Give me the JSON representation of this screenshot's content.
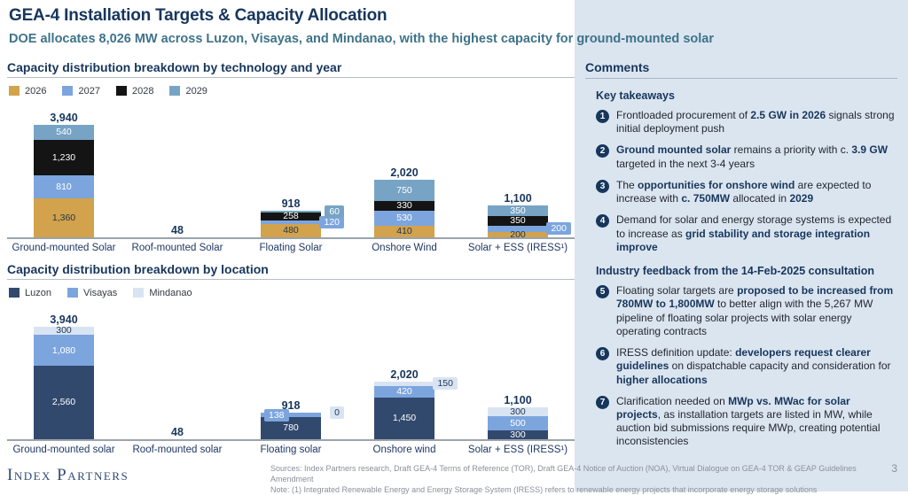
{
  "header": {
    "title": "GEA-4 Installation Targets & Capacity Allocation",
    "subtitle": "DOE allocates 8,026 MW across Luzon, Visayas, and Mindanao, with the highest capacity for ground-mounted solar"
  },
  "chart_data": [
    {
      "type": "bar",
      "stacked": true,
      "title": "Capacity distribution breakdown by technology and year",
      "unit": "MW",
      "ylim": [
        0,
        4200
      ],
      "grid": false,
      "legend_position": "top",
      "legend": [
        {
          "name": "2026",
          "color": "#D2A24C",
          "text": "#1F3550"
        },
        {
          "name": "2027",
          "color": "#7CA5DE",
          "text": "#FFFFFF"
        },
        {
          "name": "2028",
          "color": "#141414",
          "text": "#FFFFFF"
        },
        {
          "name": "2029",
          "color": "#77A4C5",
          "text": "#FFFFFF"
        }
      ],
      "categories": [
        "Ground-mounted Solar",
        "Roof-mounted Solar",
        "Floating Solar",
        "Onshore Wind",
        "Solar + ESS (IRESS¹)"
      ],
      "bars": [
        {
          "label": "Ground-mounted Solar",
          "total": 3940,
          "total_label": "3,940",
          "segments": [
            {
              "series": "2026",
              "v": 1360,
              "label": "1,360",
              "pos": "in"
            },
            {
              "series": "2027",
              "v": 810,
              "label": "810",
              "pos": "in"
            },
            {
              "series": "2028",
              "v": 1230,
              "label": "1,230",
              "pos": "in"
            },
            {
              "series": "2029",
              "v": 540,
              "label": "540",
              "pos": "in"
            }
          ]
        },
        {
          "label": "Roof-mounted Solar",
          "total": 48,
          "total_label": "48",
          "segments": []
        },
        {
          "label": "Floating Solar",
          "total": 918,
          "total_label": "918",
          "segments": [
            {
              "series": "2026",
              "v": 480,
              "label": "480",
              "pos": "in"
            },
            {
              "series": "2027",
              "v": 120,
              "label": "120",
              "pos": "right"
            },
            {
              "series": "2028",
              "v": 258,
              "label": "258",
              "pos": "in"
            },
            {
              "series": "2029",
              "v": 60,
              "label": "60",
              "pos": "right"
            }
          ]
        },
        {
          "label": "Onshore Wind",
          "total": 2020,
          "total_label": "2,020",
          "segments": [
            {
              "series": "2026",
              "v": 410,
              "label": "410",
              "pos": "in"
            },
            {
              "series": "2027",
              "v": 530,
              "label": "530",
              "pos": "in"
            },
            {
              "series": "2028",
              "v": 330,
              "label": "330",
              "pos": "in"
            },
            {
              "series": "2029",
              "v": 750,
              "label": "750",
              "pos": "in"
            }
          ]
        },
        {
          "label": "Solar + ESS (IRESS¹)",
          "total": 1100,
          "total_label": "1,100",
          "segments": [
            {
              "series": "2026",
              "v": 200,
              "label": "200",
              "pos": "in"
            },
            {
              "series": "2027",
              "v": 200,
              "label": "200",
              "pos": "right"
            },
            {
              "series": "2028",
              "v": 350,
              "label": "350",
              "pos": "in"
            },
            {
              "series": "2029",
              "v": 350,
              "label": "350",
              "pos": "in"
            }
          ]
        }
      ]
    },
    {
      "type": "bar",
      "stacked": true,
      "title": "Capacity distribution breakdown by location",
      "unit": "MW",
      "ylim": [
        0,
        4200
      ],
      "grid": false,
      "legend_position": "top",
      "legend": [
        {
          "name": "Luzon",
          "color": "#32496E",
          "text": "#FFFFFF"
        },
        {
          "name": "Visayas",
          "color": "#7CA5DE",
          "text": "#FFFFFF"
        },
        {
          "name": "Mindanao",
          "color": "#D9E4F3",
          "text": "#1F3550"
        }
      ],
      "categories": [
        "Ground-mounted solar",
        "Roof-mounted solar",
        "Floating solar",
        "Onshore wind",
        "Solar + ESS (IRESS¹)"
      ],
      "bars": [
        {
          "label": "Ground-mounted solar",
          "total": 3940,
          "total_label": "3,940",
          "segments": [
            {
              "series": "Luzon",
              "v": 2560,
              "label": "2,560",
              "pos": "in"
            },
            {
              "series": "Visayas",
              "v": 1080,
              "label": "1,080",
              "pos": "in"
            },
            {
              "series": "Mindanao",
              "v": 300,
              "label": "300",
              "pos": "in"
            }
          ]
        },
        {
          "label": "Roof-mounted solar",
          "total": 48,
          "total_label": "48",
          "segments": []
        },
        {
          "label": "Floating solar",
          "total": 918,
          "total_label": "918",
          "segments": [
            {
              "series": "Luzon",
              "v": 780,
              "label": "780",
              "pos": "in"
            },
            {
              "series": "Visayas",
              "v": 138,
              "label": "138",
              "pos": "left"
            },
            {
              "series": "Mindanao",
              "v": 0,
              "label": "0",
              "pos": "right"
            }
          ]
        },
        {
          "label": "Onshore wind",
          "total": 2020,
          "total_label": "2,020",
          "segments": [
            {
              "series": "Luzon",
              "v": 1450,
              "label": "1,450",
              "pos": "in"
            },
            {
              "series": "Visayas",
              "v": 420,
              "label": "420",
              "pos": "in"
            },
            {
              "series": "Mindanao",
              "v": 150,
              "label": "150",
              "pos": "right"
            }
          ]
        },
        {
          "label": "Solar + ESS (IRESS¹)",
          "total": 1100,
          "total_label": "1,100",
          "segments": [
            {
              "series": "Luzon",
              "v": 300,
              "label": "300",
              "pos": "in"
            },
            {
              "series": "Visayas",
              "v": 500,
              "label": "500",
              "pos": "in"
            },
            {
              "series": "Mindanao",
              "v": 300,
              "label": "300",
              "pos": "in"
            }
          ]
        }
      ]
    }
  ],
  "comments": {
    "title": "Comments",
    "badge_color": "#17365C",
    "sections": [
      {
        "heading": "Key takeaways",
        "items": [
          {
            "num": "1",
            "runs": [
              {
                "t": "Frontloaded procurement of "
              },
              {
                "t": "2.5 GW in 2026",
                "b": true
              },
              {
                "t": " signals strong initial deployment push"
              }
            ]
          },
          {
            "num": "2",
            "runs": [
              {
                "t": "Ground mounted solar",
                "b": true
              },
              {
                "t": " remains a priority with c. "
              },
              {
                "t": "3.9 GW",
                "b": true
              },
              {
                "t": " targeted in the next 3-4 years"
              }
            ]
          },
          {
            "num": "3",
            "runs": [
              {
                "t": "The "
              },
              {
                "t": "opportunities for onshore wind",
                "b": true
              },
              {
                "t": " are expected to increase with "
              },
              {
                "t": "c. 750MW",
                "b": true
              },
              {
                "t": " allocated in "
              },
              {
                "t": "2029",
                "b": true
              }
            ]
          },
          {
            "num": "4",
            "runs": [
              {
                "t": "Demand for solar and energy storage systems is expected to increase as "
              },
              {
                "t": "grid stability and storage integration improve",
                "b": true
              }
            ]
          }
        ]
      },
      {
        "heading": "Industry feedback from the 14-Feb-2025 consultation",
        "items": [
          {
            "num": "5",
            "runs": [
              {
                "t": "Floating solar targets are "
              },
              {
                "t": "proposed to be increased from 780MW to 1,800MW",
                "b": true
              },
              {
                "t": " to better align with the 5,267 MW pipeline of floating solar projects with solar energy operating contracts"
              }
            ]
          },
          {
            "num": "6",
            "runs": [
              {
                "t": "IRESS definition update: "
              },
              {
                "t": "developers request clearer guidelines",
                "b": true
              },
              {
                "t": " on dispatchable capacity and consideration for "
              },
              {
                "t": "higher allocations",
                "b": true
              }
            ]
          },
          {
            "num": "7",
            "runs": [
              {
                "t": "Clarification needed on "
              },
              {
                "t": "MWp vs. MWac for solar projects",
                "b": true
              },
              {
                "t": ", as installation targets are listed in MW, while auction bid submissions require MWp, creating potential inconsistencies"
              }
            ]
          }
        ]
      }
    ]
  },
  "footer": {
    "logo": "Index Partners",
    "sources_line": "Sources: Index Partners research, Draft GEA-4 Terms of Reference (TOR), Draft GEA-4 Notice of Auction (NOA), Virtual Dialogue on GEA-4 TOR & GEAP Guidelines Amendment",
    "note_line": "Note: (1) Integrated Renewable Energy and Energy Storage System (IRESS) refers to renewable energy projects that incorporate energy storage solutions",
    "page_number": "3"
  }
}
